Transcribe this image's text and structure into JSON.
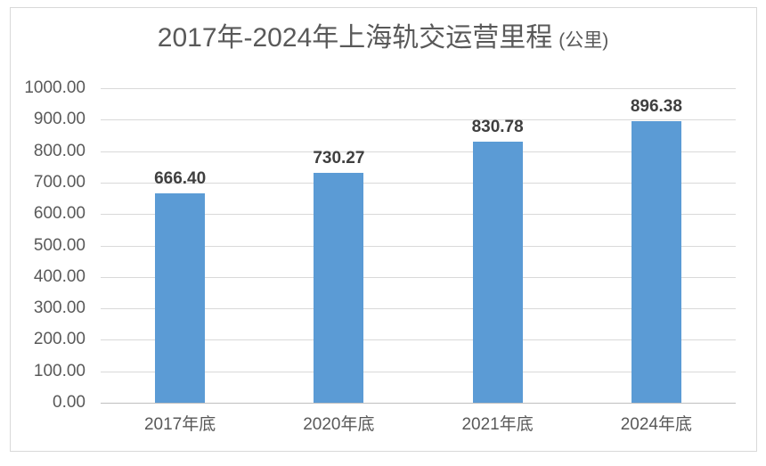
{
  "chart_data": {
    "type": "bar",
    "title": "2017年-2024年上海轨交运营里程",
    "title_unit": "(公里)",
    "categories": [
      "2017年底",
      "2020年底",
      "2021年底",
      "2024年底"
    ],
    "values": [
      666.4,
      730.27,
      830.78,
      896.38
    ],
    "value_labels": [
      "666.40",
      "730.27",
      "830.78",
      "896.38"
    ],
    "xlabel": "",
    "ylabel": "",
    "ylim": [
      0,
      1000
    ],
    "ytick_step": 100,
    "ytick_labels": [
      "1000.00",
      "900.00",
      "800.00",
      "700.00",
      "600.00",
      "500.00",
      "400.00",
      "300.00",
      "200.00",
      "100.00",
      "0.00"
    ],
    "grid": "horizontal",
    "legend": "none",
    "colors": {
      "bar": "#5b9bd5",
      "title": "#595959",
      "axis_label": "#595959",
      "data_label": "#3f3f3f",
      "gridline": "#d9d9d9",
      "axis_line": "#bfbfbf",
      "chart_border": "#d9d9d9",
      "background": "#ffffff"
    }
  }
}
